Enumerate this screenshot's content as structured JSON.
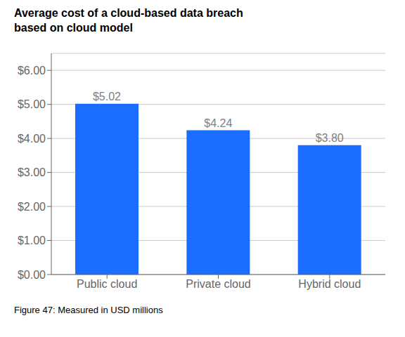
{
  "chart_data": {
    "type": "bar",
    "title": "Average cost of a cloud-based data breach\nbased on cloud model",
    "caption": "Figure 47: Measured in USD millions",
    "categories": [
      "Public cloud",
      "Private cloud",
      "Hybrid cloud"
    ],
    "values": [
      5.02,
      4.24,
      3.8
    ],
    "value_labels": [
      "$5.02",
      "$4.24",
      "$3.80"
    ],
    "data_labels": true,
    "color": "#1a6dff",
    "ylim": [
      0,
      6.5
    ],
    "yticks": [
      {
        "value": 0,
        "label": "$0.00"
      },
      {
        "value": 1,
        "label": "$1.00"
      },
      {
        "value": 2,
        "label": "$2.00"
      },
      {
        "value": 3,
        "label": "$3.00"
      },
      {
        "value": 4,
        "label": "$4.00"
      },
      {
        "value": 5,
        "label": "$5.00"
      },
      {
        "value": 6,
        "label": "$6.00"
      }
    ],
    "grid": true
  }
}
